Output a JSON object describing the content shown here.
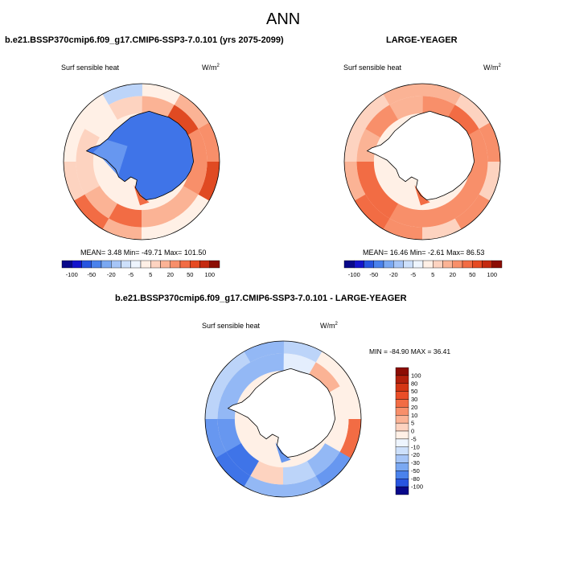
{
  "page": {
    "title": "ANN"
  },
  "panels": [
    {
      "name": "model",
      "title": "b.e21.BSSP370cmip6.f09_g17.CMIP6-SSP3-7.0.101 (yrs 2075-2099)",
      "variable": "Surf sensible heat",
      "units": "W/m",
      "units_exp": "2",
      "stats_text": "MEAN=   3.48  Min= -49.71  Max= 101.50",
      "stats": {
        "mean": 3.48,
        "min": -49.71,
        "max": 101.5
      },
      "ocean_sectors": [
        [
          4,
          18,
          30,
          55,
          4,
          1,
          20,
          32,
          8,
          4,
          3,
          -6
        ],
        [
          20,
          55,
          25,
          22,
          12,
          16,
          48,
          18,
          8,
          10,
          2,
          8
        ]
      ],
      "continent": {
        "masked": false,
        "level": -45,
        "west_level": -20,
        "ross_level": 50
      }
    },
    {
      "name": "obs",
      "title": "LARGE-YEAGER",
      "variable": "Surf sensible heat",
      "units": "W/m",
      "units_exp": "2",
      "stats_text": "MEAN=  16.46  Min=  -2.61  Max=  86.53",
      "stats": {
        "mean": 16.46,
        "min": -2.61,
        "max": 86.53
      },
      "ocean_sectors": [
        [
          14,
          10,
          30,
          8,
          22,
          8,
          28,
          45,
          20,
          10,
          8,
          12
        ],
        [
          22,
          35,
          25,
          30,
          26,
          24,
          30,
          50,
          32,
          20,
          28,
          18
        ]
      ],
      "continent": {
        "masked": true,
        "ross_level": 40
      }
    },
    {
      "name": "difference",
      "title": "b.e21.BSSP370cmip6.f09_g17.CMIP6-SSP3-7.0.101 - LARGE-YEAGER",
      "variable": "Surf sensible heat",
      "units": "W/m",
      "units_exp": "2",
      "stats_text": "MIN = -84.90 MAX =  36.41",
      "stats": {
        "min": -84.9,
        "max": 36.41
      },
      "ocean_sectors": [
        [
          -8,
          4,
          2,
          36,
          -20,
          -15,
          -10,
          -40,
          -25,
          -8,
          -6,
          -12
        ],
        [
          -2,
          20,
          3,
          3,
          -12,
          -8,
          10,
          -30,
          -20,
          -12,
          -10,
          -14
        ]
      ],
      "continent": {
        "masked": true,
        "ross_level": -20
      }
    }
  ],
  "colorbar_horizontal": {
    "labels": [
      "-100",
      "-50",
      "-20",
      "-5",
      "5",
      "20",
      "50",
      "100"
    ],
    "colors": [
      "#08088a",
      "#1414cc",
      "#2855e0",
      "#4a82ec",
      "#7aa8f2",
      "#a6c5f7",
      "#cde0fb",
      "#eef5fe",
      "#fff0e6",
      "#fdd3c0",
      "#fbb395",
      "#f88f6a",
      "#f26c44",
      "#e64a22",
      "#c42a10",
      "#8c0d04"
    ]
  },
  "colorbar_vertical": {
    "labels": [
      "100",
      "80",
      "50",
      "30",
      "20",
      "10",
      "5",
      "0",
      "-5",
      "-10",
      "-20",
      "-30",
      "-50",
      "-80",
      "-100"
    ],
    "colors": [
      "#8c0d04",
      "#b2200c",
      "#d43614",
      "#ea4e28",
      "#f26c44",
      "#f88f6a",
      "#fbb395",
      "#fdd3c0",
      "#fff0e6",
      "#eef5fe",
      "#cde0fb",
      "#a6c5f7",
      "#7aa8f2",
      "#4a82ec",
      "#2855e0",
      "#08088a"
    ]
  }
}
